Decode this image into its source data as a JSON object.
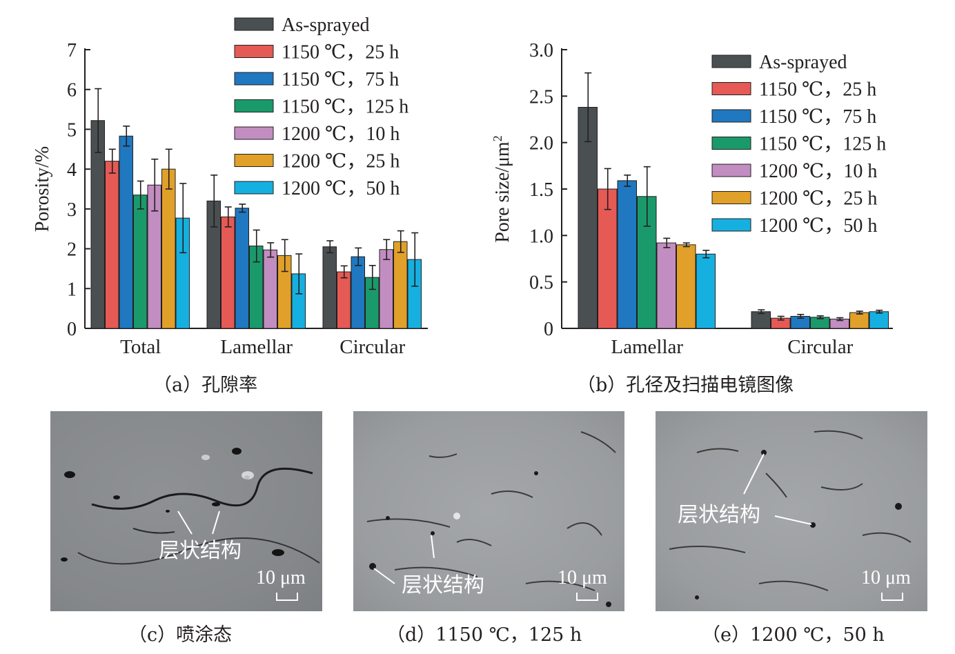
{
  "chart_data": [
    {
      "type": "bar",
      "categories": [
        "Total",
        "Lamellar",
        "Circular"
      ],
      "ylabel": "Porosity/%",
      "ylim": [
        0,
        7
      ],
      "yticks": [
        "0",
        "1",
        "2",
        "3",
        "4",
        "5",
        "6",
        "7"
      ],
      "legend_position": "top-right",
      "series": [
        {
          "name": "As-sprayed",
          "color": "#4a4f51",
          "values": [
            5.22,
            3.2,
            2.05
          ],
          "errors": [
            0.8,
            0.65,
            0.15
          ]
        },
        {
          "name": "1150 ℃，25 h",
          "color": "#e55a55",
          "values": [
            4.2,
            2.8,
            1.42
          ],
          "errors": [
            0.3,
            0.25,
            0.15
          ]
        },
        {
          "name": "1150 ℃，75 h",
          "color": "#1f78c0",
          "values": [
            4.83,
            3.02,
            1.8
          ],
          "errors": [
            0.25,
            0.1,
            0.22
          ]
        },
        {
          "name": "1150 ℃，125 h",
          "color": "#1a9a6b",
          "values": [
            3.35,
            2.07,
            1.28
          ],
          "errors": [
            0.35,
            0.4,
            0.3
          ]
        },
        {
          "name": "1200 ℃，10 h",
          "color": "#c28dc0",
          "values": [
            3.6,
            1.97,
            1.98
          ],
          "errors": [
            0.65,
            0.18,
            0.25
          ]
        },
        {
          "name": "1200 ℃，25 h",
          "color": "#e0a02a",
          "values": [
            4.0,
            1.83,
            2.18
          ],
          "errors": [
            0.5,
            0.4,
            0.27
          ]
        },
        {
          "name": "1200 ℃，50 h",
          "color": "#16b0e0",
          "values": [
            2.77,
            1.37,
            1.73
          ],
          "errors": [
            0.87,
            0.5,
            0.67
          ]
        }
      ]
    },
    {
      "type": "bar",
      "categories": [
        "Lamellar",
        "Circular"
      ],
      "ylabel_main": "Pore size/μm",
      "ylabel_sup": "2",
      "ylim": [
        0,
        3.0
      ],
      "yticks": [
        "0",
        "0.5",
        "1.0",
        "1.5",
        "2.0",
        "2.5",
        "3.0"
      ],
      "legend_position": "top-right",
      "series": [
        {
          "name": "As-sprayed",
          "color": "#4a4f51",
          "values": [
            2.38,
            0.18
          ],
          "errors": [
            0.37,
            0.02
          ]
        },
        {
          "name": "1150 ℃，25 h",
          "color": "#e55a55",
          "values": [
            1.5,
            0.11
          ],
          "errors": [
            0.22,
            0.02
          ]
        },
        {
          "name": "1150 ℃，75 h",
          "color": "#1f78c0",
          "values": [
            1.59,
            0.13
          ],
          "errors": [
            0.06,
            0.02
          ]
        },
        {
          "name": "1150 ℃，125 h",
          "color": "#1a9a6b",
          "values": [
            1.42,
            0.12
          ],
          "errors": [
            0.32,
            0.015
          ]
        },
        {
          "name": "1200 ℃，10 h",
          "color": "#c28dc0",
          "values": [
            0.92,
            0.1
          ],
          "errors": [
            0.05,
            0.015
          ]
        },
        {
          "name": "1200 ℃，25 h",
          "color": "#e0a02a",
          "values": [
            0.9,
            0.17
          ],
          "errors": [
            0.02,
            0.015
          ]
        },
        {
          "name": "1200 ℃，50 h",
          "color": "#16b0e0",
          "values": [
            0.8,
            0.18
          ],
          "errors": [
            0.04,
            0.015
          ]
        }
      ]
    }
  ],
  "captions": {
    "a": "（a）孔隙率",
    "b": "（b）孔径及扫描电镜图像",
    "c": "（c）喷涂态",
    "d": "（d）1150 ℃，125 h",
    "e": "（e）1200 ℃，50 h"
  },
  "micrographs": {
    "c": {
      "annotation": "层状结构",
      "scale": "10 μm"
    },
    "d": {
      "annotation": "层状结构",
      "scale": "10 μm"
    },
    "e": {
      "annotation": "层状结构",
      "scale": "10 μm"
    }
  }
}
